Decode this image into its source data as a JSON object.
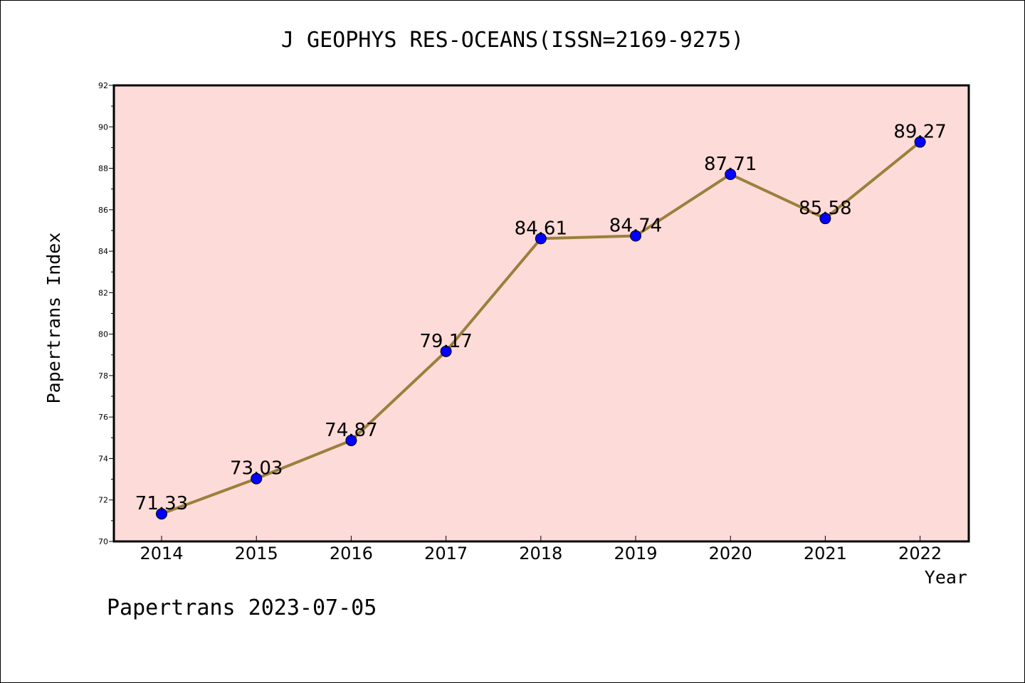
{
  "chart_data": {
    "type": "line",
    "title": "J GEOPHYS RES-OCEANS(ISSN=2169-9275)",
    "xlabel": "Year",
    "ylabel": "Papertrans Index",
    "categories": [
      "2014",
      "2015",
      "2016",
      "2017",
      "2018",
      "2019",
      "2020",
      "2021",
      "2022"
    ],
    "series": [
      {
        "values": [
          71.33,
          73.03,
          74.87,
          79.17,
          84.61,
          84.74,
          87.71,
          85.58,
          89.27
        ],
        "labels": [
          "71.33",
          "73.03",
          "74.87",
          "79.17",
          "84.61",
          "84.74",
          "87.71",
          "85.58",
          "89.27"
        ]
      }
    ],
    "ylim": [
      70,
      92
    ],
    "yticks": [
      70,
      72,
      74,
      76,
      78,
      80,
      82,
      84,
      86,
      88,
      90,
      92
    ],
    "grid": false,
    "colors": {
      "plot_background": "#fddbd8",
      "line": "#9b7f3c",
      "marker": "#0000ff"
    }
  },
  "footer": "Papertrans 2023-07-05"
}
